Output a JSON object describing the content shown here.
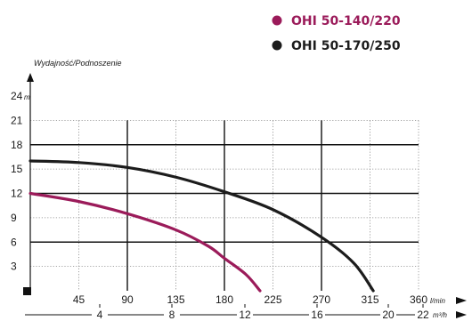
{
  "chart_data": {
    "type": "line",
    "ylabel": "Wydajność/Podnoszenie",
    "y_unit": "m",
    "x_unit_primary": "l/min",
    "x_unit_secondary": "m³/h",
    "ylim": [
      0,
      24
    ],
    "xlim": [
      0,
      360
    ],
    "y_ticks": [
      "3",
      "6",
      "9",
      "12",
      "15",
      "18",
      "21",
      "24"
    ],
    "x_ticks": [
      "45",
      "90",
      "135",
      "180",
      "225",
      "270",
      "315",
      "360"
    ],
    "x2_ticks": [
      "4",
      "8",
      "12",
      "16",
      "20",
      "22"
    ],
    "grid": true,
    "legend_position": "top-right",
    "series": [
      {
        "name": "OHI 50-140/220",
        "color": "#9b1b5a",
        "x": [
          0,
          45,
          90,
          135,
          165,
          180,
          200,
          213
        ],
        "y": [
          12,
          11,
          9.5,
          7.5,
          5.5,
          4,
          2,
          0
        ]
      },
      {
        "name": "OHI 50-170/250",
        "color": "#1c1c1c",
        "x": [
          0,
          45,
          90,
          135,
          180,
          225,
          270,
          300,
          318
        ],
        "y": [
          16,
          15.8,
          15.2,
          14,
          12.2,
          10,
          6.6,
          3.4,
          0
        ]
      }
    ]
  }
}
